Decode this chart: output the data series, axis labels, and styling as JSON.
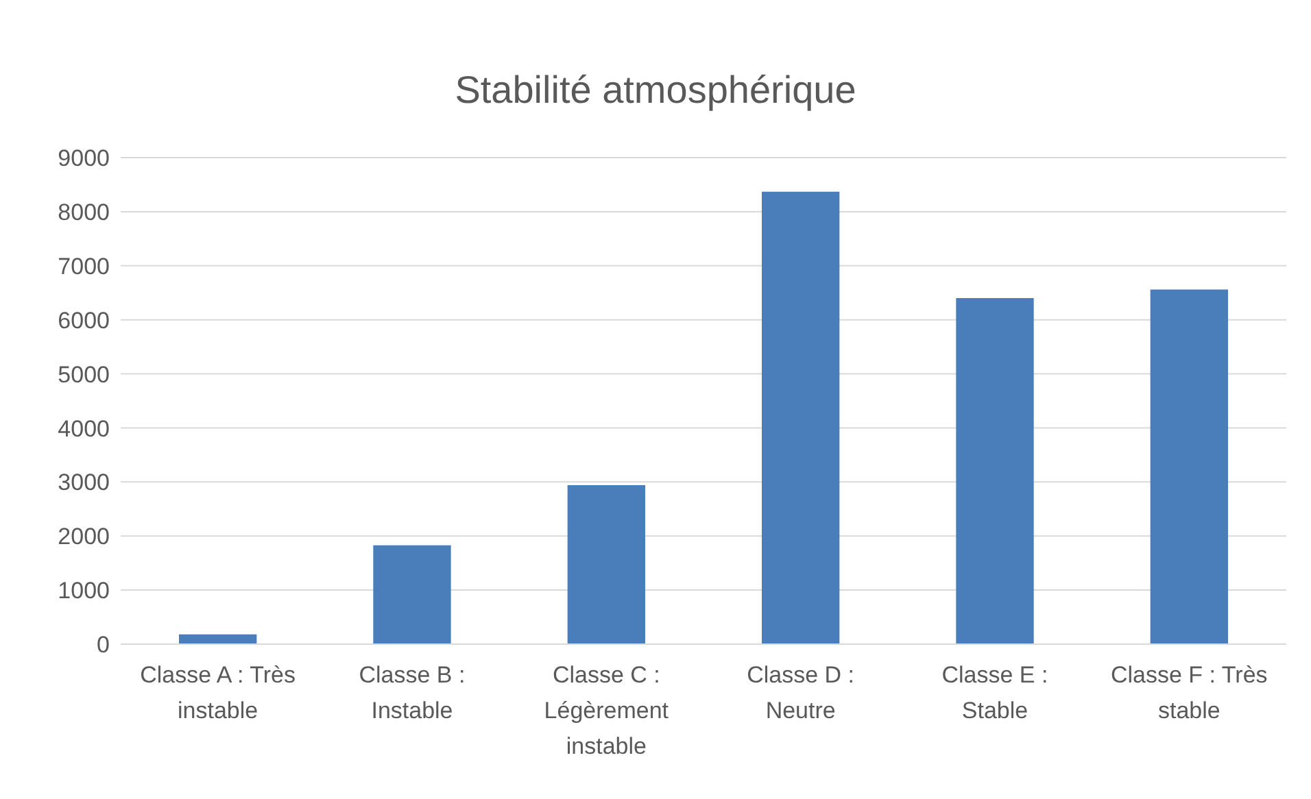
{
  "chart_data": {
    "type": "bar",
    "title": "Stabilité atmosphérique",
    "categories": [
      "Classe A : Très instable",
      "Classe B : Instable",
      "Classe C : Légèrement instable",
      "Classe D : Neutre",
      "Classe E : Stable",
      "Classe F : Très stable"
    ],
    "values": [
      180,
      1830,
      2940,
      8370,
      6400,
      6560
    ],
    "color": "#4a7ebb",
    "ylim": [
      0,
      9000
    ],
    "yticks": [
      0,
      1000,
      2000,
      3000,
      4000,
      5000,
      6000,
      7000,
      8000,
      9000
    ],
    "grid": "y",
    "legend": false
  }
}
